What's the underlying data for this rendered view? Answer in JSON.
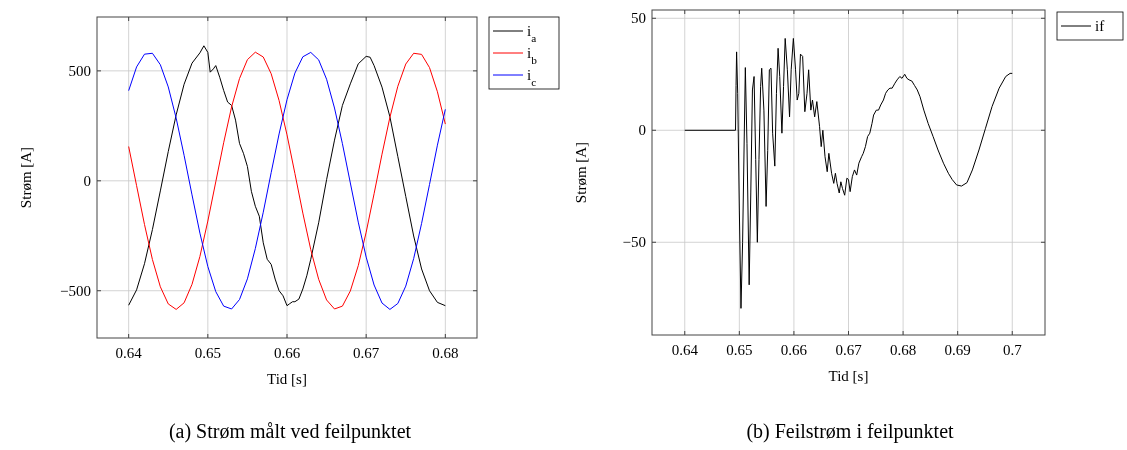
{
  "chart_data": [
    {
      "type": "line",
      "xlabel": "Tid [s]",
      "ylabel": "Strøm [A]",
      "annotations": [
        "(a) Strøm målt ved feilpunktet"
      ],
      "xlim": [
        0.636,
        0.684
      ],
      "ylim": [
        -715,
        745
      ],
      "xticks": [
        0.64,
        0.65,
        0.66,
        0.67,
        0.68
      ],
      "yticks": [
        {
          "value": -500,
          "label": "−500"
        },
        0,
        500
      ],
      "grid": true,
      "legend": "right",
      "line_style": "solid",
      "series": [
        {
          "name": "i$_{a}$",
          "color": "#000000",
          "x": [
            0.64,
            0.641,
            0.642,
            0.643,
            0.644,
            0.645,
            0.646,
            0.647,
            0.648,
            0.649,
            0.6495,
            0.65,
            0.6503,
            0.6507,
            0.651,
            0.6515,
            0.652,
            0.6525,
            0.653,
            0.6535,
            0.654,
            0.6545,
            0.655,
            0.6555,
            0.656,
            0.6565,
            0.657,
            0.6575,
            0.658,
            0.6585,
            0.659,
            0.6595,
            0.66,
            0.6603,
            0.6607,
            0.661,
            0.6615,
            0.662,
            0.6625,
            0.663,
            0.664,
            0.665,
            0.666,
            0.667,
            0.668,
            0.669,
            0.67,
            0.6705,
            0.671,
            0.672,
            0.673,
            0.674,
            0.675,
            0.676,
            0.677,
            0.678,
            0.679,
            0.68
          ],
          "values": [
            -566,
            -496,
            -377,
            -222,
            -46,
            133,
            300,
            439,
            535,
            582,
            614,
            584,
            494,
            509,
            524,
            471,
            411,
            358,
            343,
            276,
            170,
            125,
            65,
            -48,
            -116,
            -161,
            -282,
            -357,
            -380,
            -447,
            -500,
            -523,
            -568,
            -560,
            -550,
            -550,
            -538,
            -492,
            -432,
            -357,
            -191,
            5,
            185,
            343,
            441,
            532,
            566,
            562,
            524,
            426,
            291,
            110,
            -71,
            -251,
            -401,
            -500,
            -553,
            -568
          ]
        },
        {
          "name": "i$_{b}$",
          "color": "#ff0000",
          "x": [
            0.64,
            0.641,
            0.642,
            0.643,
            0.644,
            0.645,
            0.646,
            0.647,
            0.648,
            0.649,
            0.65,
            0.651,
            0.652,
            0.653,
            0.654,
            0.655,
            0.656,
            0.657,
            0.658,
            0.659,
            0.66,
            0.661,
            0.662,
            0.663,
            0.664,
            0.665,
            0.666,
            0.667,
            0.668,
            0.669,
            0.67,
            0.671,
            0.672,
            0.673,
            0.674,
            0.675,
            0.676,
            0.677,
            0.678,
            0.679,
            0.68
          ],
          "values": [
            156,
            -22,
            -199,
            -358,
            -482,
            -560,
            -585,
            -555,
            -471,
            -344,
            -183,
            -5,
            173,
            336,
            465,
            551,
            585,
            563,
            487,
            365,
            209,
            33,
            -147,
            -313,
            -448,
            -542,
            -583,
            -570,
            -501,
            -386,
            -234,
            -59,
            121,
            289,
            430,
            531,
            580,
            575,
            515,
            405,
            258
          ]
        },
        {
          "name": "i$_{c}$",
          "color": "#0000ff",
          "x": [
            0.64,
            0.641,
            0.642,
            0.643,
            0.644,
            0.645,
            0.646,
            0.647,
            0.648,
            0.649,
            0.65,
            0.651,
            0.652,
            0.653,
            0.654,
            0.655,
            0.656,
            0.657,
            0.658,
            0.659,
            0.66,
            0.661,
            0.662,
            0.663,
            0.664,
            0.665,
            0.666,
            0.667,
            0.668,
            0.669,
            0.67,
            0.671,
            0.672,
            0.673,
            0.674,
            0.675,
            0.676,
            0.677,
            0.678,
            0.679,
            0.68
          ],
          "values": [
            410,
            518,
            576,
            580,
            528,
            427,
            285,
            116,
            -64,
            -238,
            -390,
            -504,
            -570,
            -583,
            -540,
            -446,
            -308,
            -143,
            37,
            213,
            369,
            490,
            564,
            584,
            550,
            462,
            331,
            169,
            -10,
            -188,
            -347,
            -474,
            -556,
            -585,
            -558,
            -479,
            -354,
            -194,
            -17,
            162,
            325
          ]
        }
      ]
    },
    {
      "type": "line",
      "xlabel": "Tid [s]",
      "ylabel": "Strøm [A]",
      "annotations": [
        "(b) Feilstrøm i feilpunktet"
      ],
      "xlim": [
        0.634,
        0.706
      ],
      "ylim": [
        -91.4,
        53.7
      ],
      "xticks": [
        0.64,
        0.65,
        0.66,
        0.67,
        0.68,
        0.69,
        0.7
      ],
      "yticks": [
        {
          "value": -50,
          "label": "−50"
        },
        0,
        50
      ],
      "grid": true,
      "legend": "right",
      "line_style": "solid",
      "series": [
        {
          "name": "if",
          "color": "#000000",
          "x": [
            0.64,
            0.6493,
            0.6494,
            0.6495,
            0.6497,
            0.65,
            0.6503,
            0.6506,
            0.6509,
            0.6511,
            0.6514,
            0.6518,
            0.6521,
            0.6524,
            0.6527,
            0.653,
            0.6533,
            0.6536,
            0.6539,
            0.6541,
            0.6545,
            0.6549,
            0.6552,
            0.6555,
            0.6558,
            0.6561,
            0.6565,
            0.6568,
            0.6571,
            0.6574,
            0.6578,
            0.6581,
            0.6584,
            0.6588,
            0.6592,
            0.6595,
            0.6599,
            0.6603,
            0.6606,
            0.6609,
            0.6612,
            0.6616,
            0.662,
            0.6624,
            0.6627,
            0.6631,
            0.6634,
            0.6638,
            0.6642,
            0.6647,
            0.665,
            0.6653,
            0.6657,
            0.6661,
            0.6664,
            0.6669,
            0.6673,
            0.6676,
            0.6679,
            0.6683,
            0.6686,
            0.6689,
            0.6693,
            0.6697,
            0.67,
            0.6703,
            0.6707,
            0.6711,
            0.6715,
            0.6719,
            0.6724,
            0.6727,
            0.6731,
            0.6735,
            0.6739,
            0.6743,
            0.6746,
            0.6751,
            0.6755,
            0.6759,
            0.6764,
            0.6768,
            0.6772,
            0.6776,
            0.678,
            0.6785,
            0.6789,
            0.6794,
            0.6798,
            0.6803,
            0.6807,
            0.6811,
            0.6816,
            0.6821,
            0.6826,
            0.6831,
            0.6838,
            0.6846,
            0.6855,
            0.6864,
            0.6874,
            0.6883,
            0.689,
            0.6898,
            0.6907,
            0.6917,
            0.6927,
            0.6939,
            0.6951,
            0.6963,
            0.6976,
            0.6988,
            0.6996,
            0.7
          ],
          "values": [
            0,
            0,
            20,
            35,
            16.5,
            -35.6,
            -79.5,
            -50,
            -3,
            28,
            -6,
            -69,
            -28,
            18,
            24,
            -13,
            -50,
            -13,
            19.5,
            27.7,
            9,
            -34,
            -9,
            27,
            27.7,
            -1.3,
            -16,
            16.5,
            36.6,
            24,
            -1.3,
            19.5,
            41,
            27,
            6,
            27,
            41,
            27,
            13.5,
            16.5,
            34,
            33,
            8.3,
            16.5,
            27,
            9,
            13.5,
            6,
            12.8,
            1.6,
            -7.3,
            0,
            -11.8,
            -18.5,
            -10.3,
            -19.2,
            -23.7,
            -19.2,
            -23.7,
            -28,
            -23,
            -26,
            -29,
            -21.4,
            -22,
            -27.4,
            -20.7,
            -17.7,
            -20,
            -14.7,
            -11.8,
            -10.3,
            -7.3,
            -2.8,
            -1.3,
            3,
            6.8,
            9,
            9,
            11.3,
            13.5,
            16.5,
            18,
            18.8,
            18.8,
            21,
            22.5,
            24,
            23.2,
            25,
            23.2,
            22.5,
            22,
            20,
            18,
            15,
            9,
            3,
            -2.8,
            -8.8,
            -14.7,
            -19.2,
            -22,
            -24.4,
            -24.9,
            -23.4,
            -17.7,
            -8.8,
            0.9,
            10.6,
            18.8,
            24,
            25.4,
            25.4
          ]
        }
      ]
    }
  ]
}
